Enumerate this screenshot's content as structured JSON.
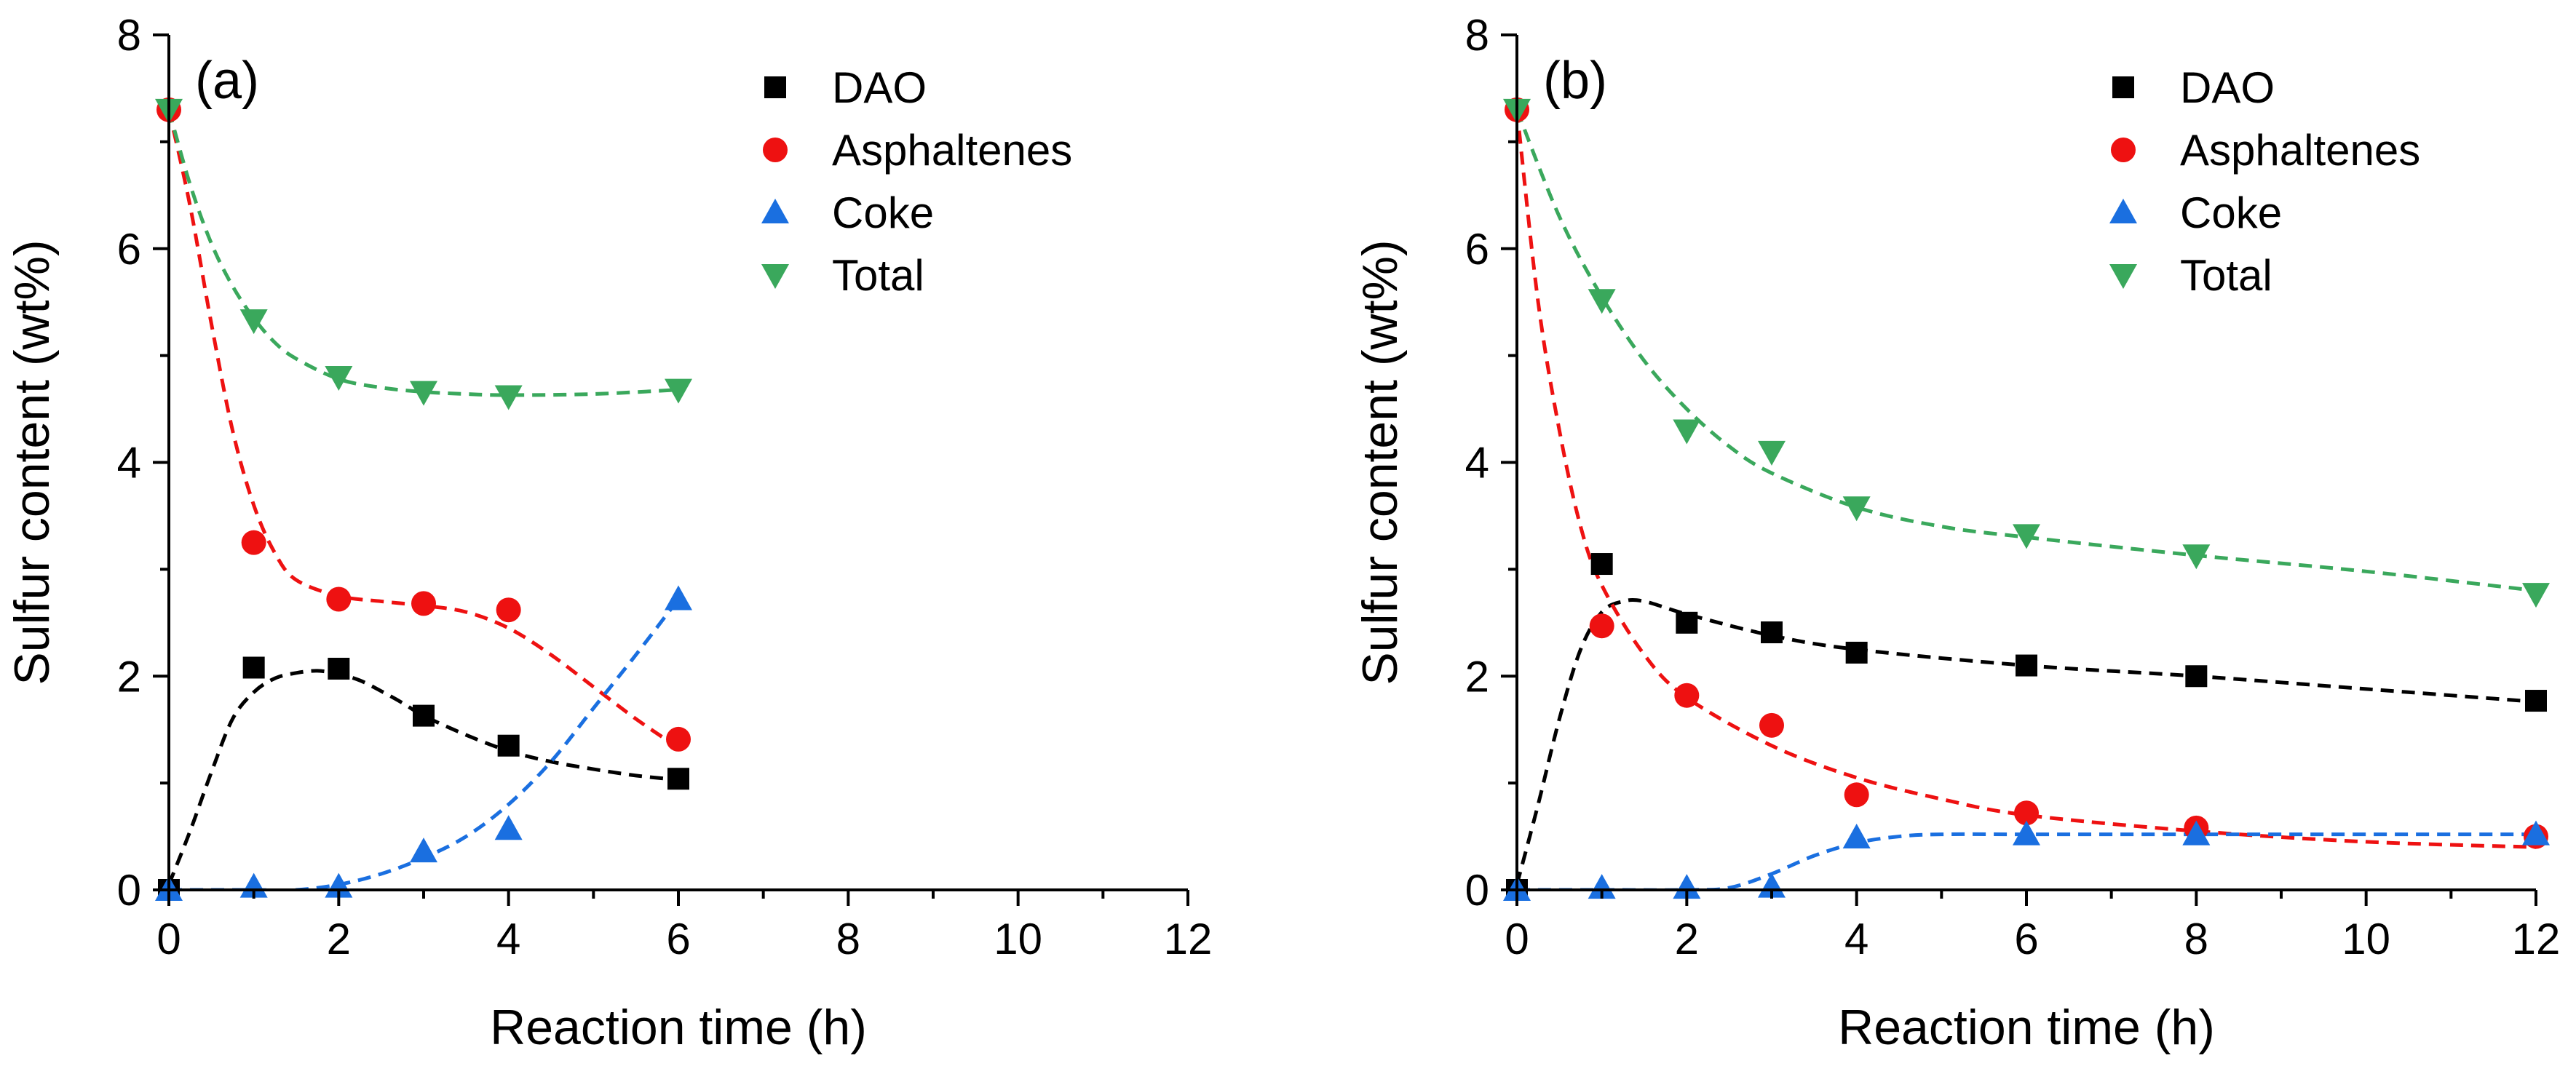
{
  "chart_data": [
    {
      "type": "scatter",
      "panel_label": "(a)",
      "xlabel": "Reaction time (h)",
      "ylabel": "Sulfur content (wt%)",
      "xlim": [
        0,
        12
      ],
      "ylim": [
        0,
        8
      ],
      "x_ticks": [
        0,
        2,
        4,
        6,
        8,
        10,
        12
      ],
      "y_ticks": [
        0,
        2,
        4,
        6,
        8
      ],
      "x_tick_labels": [
        "0",
        "2",
        "4",
        "6",
        "8",
        "10",
        "12"
      ],
      "y_tick_labels": [
        "0",
        "2",
        "4",
        "6",
        "8"
      ],
      "grid": false,
      "legend_position": "top-right",
      "series": [
        {
          "name": "DAO",
          "marker": "square",
          "color": "#000000",
          "x": [
            0,
            1,
            2,
            3,
            4,
            6
          ],
          "y": [
            0,
            2.08,
            2.07,
            1.63,
            1.35,
            1.04
          ],
          "fit_x": [
            0,
            0.25,
            0.5,
            0.75,
            1,
            1.25,
            1.5,
            1.75,
            2,
            2.25,
            2.5,
            2.75,
            3,
            3.5,
            4,
            4.5,
            5,
            5.5,
            6
          ],
          "fit_y": [
            0.05,
            0.55,
            1.1,
            1.6,
            1.85,
            1.98,
            2.03,
            2.05,
            2.02,
            1.96,
            1.86,
            1.75,
            1.63,
            1.45,
            1.3,
            1.2,
            1.13,
            1.07,
            1.03
          ]
        },
        {
          "name": "Asphaltenes",
          "marker": "circle",
          "color": "#ee1111",
          "x": [
            0,
            1,
            2,
            3,
            4,
            6
          ],
          "y": [
            7.3,
            3.25,
            2.72,
            2.68,
            2.62,
            1.41
          ],
          "fit_x": [
            0,
            0.25,
            0.5,
            0.75,
            1,
            1.25,
            1.5,
            2,
            2.5,
            3,
            3.5,
            4,
            4.5,
            5,
            5.5,
            6
          ],
          "fit_y": [
            7.3,
            6.4,
            5.3,
            4.3,
            3.6,
            3.15,
            2.9,
            2.75,
            2.7,
            2.66,
            2.6,
            2.45,
            2.2,
            1.9,
            1.6,
            1.33
          ]
        },
        {
          "name": "Coke",
          "marker": "triangle-up",
          "color": "#1a6fe0",
          "x": [
            0,
            1,
            2,
            3,
            4,
            6
          ],
          "y": [
            0,
            0.03,
            0.03,
            0.36,
            0.57,
            2.72
          ],
          "fit_x": [
            0,
            0.5,
            1,
            1.5,
            2,
            2.5,
            3,
            3.5,
            4,
            4.5,
            5,
            5.5,
            6
          ],
          "fit_y": [
            0,
            0,
            0,
            0,
            0.05,
            0.15,
            0.3,
            0.5,
            0.8,
            1.2,
            1.7,
            2.2,
            2.72
          ]
        },
        {
          "name": "Total",
          "marker": "triangle-down",
          "color": "#3aa85c",
          "x": [
            0,
            1,
            2,
            3,
            4,
            6
          ],
          "y": [
            7.3,
            5.33,
            4.8,
            4.66,
            4.62,
            4.68
          ],
          "fit_x": [
            0,
            0.25,
            0.5,
            0.75,
            1,
            1.25,
            1.5,
            2,
            2.5,
            3,
            3.5,
            4,
            5,
            6
          ],
          "fit_y": [
            7.3,
            6.6,
            6.05,
            5.65,
            5.35,
            5.12,
            4.97,
            4.78,
            4.7,
            4.66,
            4.64,
            4.63,
            4.64,
            4.68
          ]
        }
      ]
    },
    {
      "type": "scatter",
      "panel_label": "(b)",
      "xlabel": "Reaction time (h)",
      "ylabel": "Sulfur content (wt%)",
      "xlim": [
        0,
        12
      ],
      "ylim": [
        0,
        8
      ],
      "x_ticks": [
        0,
        2,
        4,
        6,
        8,
        10,
        12
      ],
      "y_ticks": [
        0,
        2,
        4,
        6,
        8
      ],
      "x_tick_labels": [
        "0",
        "2",
        "4",
        "6",
        "8",
        "10",
        "12"
      ],
      "y_tick_labels": [
        "0",
        "2",
        "4",
        "6",
        "8"
      ],
      "grid": false,
      "legend_position": "top-right",
      "series": [
        {
          "name": "DAO",
          "marker": "square",
          "color": "#000000",
          "x": [
            0,
            1,
            2,
            3,
            4,
            6,
            8,
            12
          ],
          "y": [
            0,
            3.05,
            2.5,
            2.41,
            2.22,
            2.1,
            2.0,
            1.77
          ],
          "fit_x": [
            0,
            0.25,
            0.5,
            0.75,
            1,
            1.25,
            1.5,
            2,
            3,
            4,
            6,
            8,
            10,
            12
          ],
          "fit_y": [
            0.05,
            0.8,
            1.6,
            2.25,
            2.6,
            2.7,
            2.7,
            2.58,
            2.38,
            2.25,
            2.1,
            2.0,
            1.88,
            1.76
          ]
        },
        {
          "name": "Asphaltenes",
          "marker": "circle",
          "color": "#ee1111",
          "x": [
            0,
            1,
            2,
            3,
            4,
            6,
            8,
            12
          ],
          "y": [
            7.3,
            2.47,
            1.82,
            1.54,
            0.89,
            0.72,
            0.58,
            0.5
          ],
          "fit_x": [
            0,
            0.25,
            0.5,
            0.75,
            1,
            1.5,
            2,
            3,
            4,
            5,
            6,
            8,
            10,
            12
          ],
          "fit_y": [
            7.3,
            5.5,
            4.3,
            3.4,
            2.85,
            2.2,
            1.8,
            1.35,
            1.05,
            0.85,
            0.7,
            0.55,
            0.45,
            0.4
          ]
        },
        {
          "name": "Coke",
          "marker": "triangle-up",
          "color": "#1a6fe0",
          "x": [
            0,
            1,
            2,
            3,
            4,
            6,
            8,
            12
          ],
          "y": [
            0,
            0.02,
            0.02,
            0.03,
            0.49,
            0.52,
            0.52,
            0.52
          ],
          "fit_x": [
            0,
            1,
            2,
            2.5,
            3,
            3.5,
            4,
            4.5,
            5,
            6,
            8,
            10,
            12
          ],
          "fit_y": [
            0,
            0,
            0,
            0.02,
            0.15,
            0.32,
            0.44,
            0.5,
            0.52,
            0.52,
            0.52,
            0.52,
            0.52
          ]
        },
        {
          "name": "Total",
          "marker": "triangle-down",
          "color": "#3aa85c",
          "x": [
            0,
            1,
            2,
            3,
            4,
            6,
            8,
            12
          ],
          "y": [
            7.3,
            5.52,
            4.3,
            4.1,
            3.58,
            3.32,
            3.13,
            2.77
          ],
          "fit_x": [
            0,
            0.5,
            1,
            1.5,
            2,
            2.5,
            3,
            4,
            5,
            6,
            8,
            10,
            12
          ],
          "fit_y": [
            7.3,
            6.3,
            5.55,
            4.95,
            4.5,
            4.15,
            3.9,
            3.58,
            3.4,
            3.3,
            3.13,
            2.98,
            2.8
          ]
        }
      ]
    }
  ]
}
